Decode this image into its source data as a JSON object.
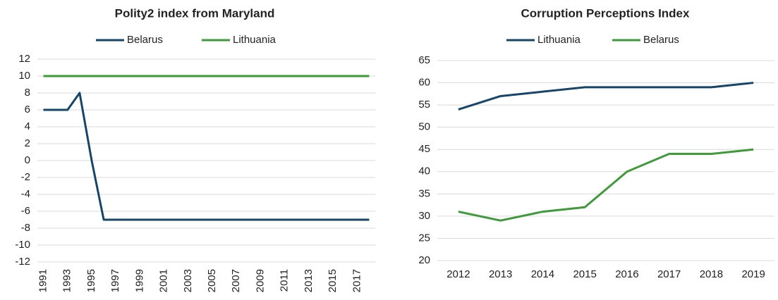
{
  "chart_data": [
    {
      "type": "line",
      "title": "Polity2 index from Maryland",
      "categories": [
        "1991",
        null,
        "1993",
        null,
        "1995",
        null,
        "1997",
        null,
        "1999",
        null,
        "2001",
        null,
        "2003",
        null,
        "2005",
        null,
        "2007",
        null,
        "2009",
        null,
        "2011",
        null,
        "2013",
        null,
        "2015",
        null,
        "2017",
        null
      ],
      "series": [
        {
          "name": "Belarus",
          "color": "#17456a",
          "values": [
            6,
            6,
            6,
            8,
            0,
            -7,
            -7,
            -7,
            -7,
            -7,
            -7,
            -7,
            -7,
            -7,
            -7,
            -7,
            -7,
            -7,
            -7,
            -7,
            -7,
            -7,
            -7,
            -7,
            -7,
            -7,
            -7,
            -7
          ]
        },
        {
          "name": "Lithuania",
          "color": "#3f9a3a",
          "values": [
            10,
            10,
            10,
            10,
            10,
            10,
            10,
            10,
            10,
            10,
            10,
            10,
            10,
            10,
            10,
            10,
            10,
            10,
            10,
            10,
            10,
            10,
            10,
            10,
            10,
            10,
            10,
            10
          ]
        }
      ],
      "ylim": [
        -12,
        12
      ],
      "yticks": [
        -12,
        -10,
        -8,
        -6,
        -4,
        -2,
        0,
        2,
        4,
        6,
        8,
        10,
        12
      ],
      "grid": true,
      "legend": "top"
    },
    {
      "type": "line",
      "title": "Corruption Perceptions Index",
      "categories": [
        "2012",
        "2013",
        "2014",
        "2015",
        "2016",
        "2017",
        "2018",
        "2019"
      ],
      "series": [
        {
          "name": "Lithuania",
          "color": "#17456a",
          "values": [
            54,
            57,
            58,
            59,
            59,
            59,
            59,
            60
          ]
        },
        {
          "name": "Belarus",
          "color": "#3f9a3a",
          "values": [
            31,
            29,
            31,
            32,
            40,
            44,
            44,
            45
          ]
        }
      ],
      "ylim": [
        20,
        65
      ],
      "yticks": [
        20,
        25,
        30,
        35,
        40,
        45,
        50,
        55,
        60,
        65
      ],
      "grid": true,
      "legend": "top"
    }
  ]
}
